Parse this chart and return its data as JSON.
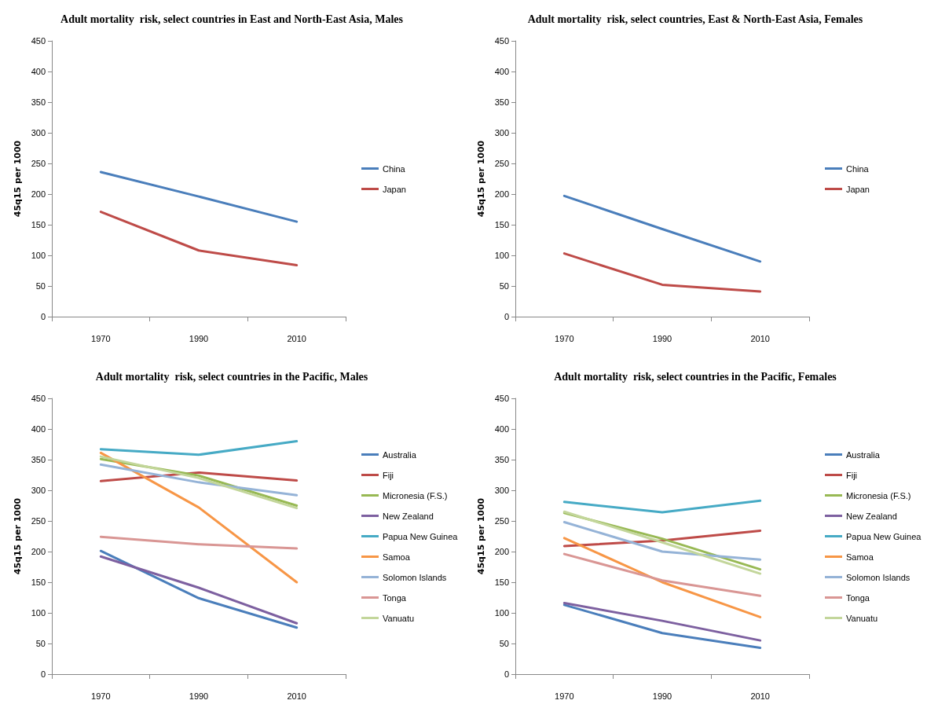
{
  "chart_data": [
    {
      "type": "line",
      "title": "Adult mortality  risk, select countries in East and North-East Asia, Males",
      "ylabel": "45q15 per 1000",
      "categories": [
        "1970",
        "1990",
        "2010"
      ],
      "ylim": [
        0,
        450
      ],
      "yticks": [
        0,
        50,
        100,
        150,
        200,
        250,
        300,
        350,
        400,
        450
      ],
      "grid": false,
      "legend": "right",
      "marker": "none",
      "series": [
        {
          "name": "China",
          "color": "#4a7ebb",
          "values": [
            236,
            196,
            155
          ]
        },
        {
          "name": "Japan",
          "color": "#be4b48",
          "values": [
            171,
            108,
            84
          ]
        }
      ]
    },
    {
      "type": "line",
      "title": "Adult mortality  risk, select countries, East & North-East Asia, Females",
      "ylabel": "45q15 per 1000",
      "categories": [
        "1970",
        "1990",
        "2010"
      ],
      "ylim": [
        0,
        450
      ],
      "yticks": [
        0,
        50,
        100,
        150,
        200,
        250,
        300,
        350,
        400,
        450
      ],
      "grid": false,
      "legend": "right",
      "marker": "none",
      "series": [
        {
          "name": "China",
          "color": "#4a7ebb",
          "values": [
            197,
            143,
            90
          ]
        },
        {
          "name": "Japan",
          "color": "#be4b48",
          "values": [
            103,
            52,
            41
          ]
        }
      ]
    },
    {
      "type": "line",
      "title": "Adult mortality  risk, select countries in the Pacific, Males",
      "ylabel": "45q15 per 1000",
      "categories": [
        "1970",
        "1990",
        "2010"
      ],
      "ylim": [
        0,
        450
      ],
      "yticks": [
        0,
        50,
        100,
        150,
        200,
        250,
        300,
        350,
        400,
        450
      ],
      "grid": false,
      "legend": "right",
      "marker": "none",
      "series": [
        {
          "name": "Australia",
          "color": "#4a7ebb",
          "values": [
            201,
            124,
            76
          ]
        },
        {
          "name": "Fiji",
          "color": "#be4b48",
          "values": [
            315,
            329,
            316
          ]
        },
        {
          "name": "Micronesia (F.S.)",
          "color": "#98b954",
          "values": [
            351,
            324,
            275
          ]
        },
        {
          "name": "New Zealand",
          "color": "#7d60a0",
          "values": [
            192,
            141,
            83
          ]
        },
        {
          "name": "Papua New Guinea",
          "color": "#46aac5",
          "values": [
            367,
            358,
            380
          ]
        },
        {
          "name": "Samoa",
          "color": "#f79646",
          "values": [
            361,
            272,
            150
          ]
        },
        {
          "name": "Solomon Islands",
          "color": "#95b3d7",
          "values": [
            342,
            313,
            292
          ]
        },
        {
          "name": "Tonga",
          "color": "#d99694",
          "values": [
            224,
            212,
            205
          ]
        },
        {
          "name": "Vanuatu",
          "color": "#c3d69b",
          "values": [
            355,
            320,
            271
          ]
        }
      ]
    },
    {
      "type": "line",
      "title": "Adult mortality  risk, select countries in the Pacific, Females",
      "ylabel": "45q15 per 1000",
      "categories": [
        "1970",
        "1990",
        "2010"
      ],
      "ylim": [
        0,
        450
      ],
      "yticks": [
        0,
        50,
        100,
        150,
        200,
        250,
        300,
        350,
        400,
        450
      ],
      "grid": false,
      "legend": "right",
      "marker": "none",
      "series": [
        {
          "name": "Australia",
          "color": "#4a7ebb",
          "values": [
            113,
            67,
            43
          ]
        },
        {
          "name": "Fiji",
          "color": "#be4b48",
          "values": [
            209,
            218,
            234
          ]
        },
        {
          "name": "Micronesia (F.S.)",
          "color": "#98b954",
          "values": [
            263,
            221,
            171
          ]
        },
        {
          "name": "New Zealand",
          "color": "#7d60a0",
          "values": [
            116,
            87,
            55
          ]
        },
        {
          "name": "Papua New Guinea",
          "color": "#46aac5",
          "values": [
            281,
            264,
            283
          ]
        },
        {
          "name": "Samoa",
          "color": "#f79646",
          "values": [
            222,
            150,
            93
          ]
        },
        {
          "name": "Solomon Islands",
          "color": "#95b3d7",
          "values": [
            248,
            200,
            187
          ]
        },
        {
          "name": "Tonga",
          "color": "#d99694",
          "values": [
            196,
            153,
            128
          ]
        },
        {
          "name": "Vanuatu",
          "color": "#c3d69b",
          "values": [
            265,
            215,
            164
          ]
        }
      ]
    }
  ]
}
